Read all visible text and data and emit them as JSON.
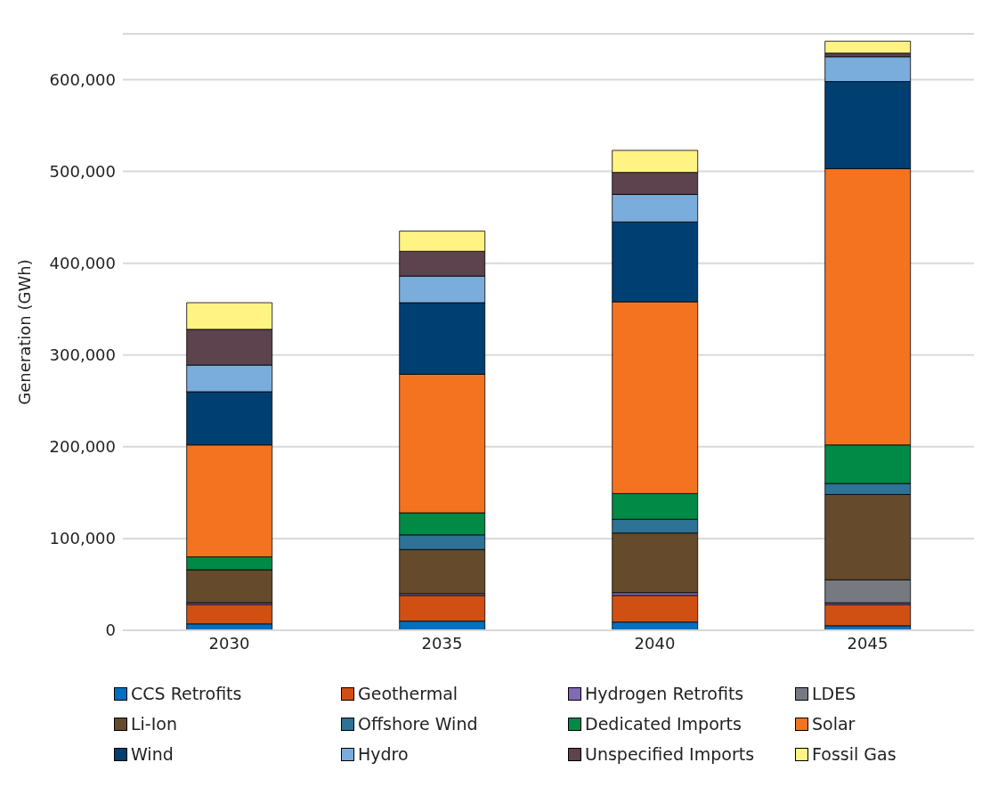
{
  "chart_data": {
    "type": "bar",
    "stacked": true,
    "ylabel": "Generation (GWh)",
    "categories": [
      "2030",
      "2035",
      "2040",
      "2045"
    ],
    "ylim": [
      0,
      650000
    ],
    "yticks": [
      {
        "value": 0,
        "label": "0"
      },
      {
        "value": 100000,
        "label": "100,000"
      },
      {
        "value": 200000,
        "label": "200,000"
      },
      {
        "value": 300000,
        "label": "300,000"
      },
      {
        "value": 400000,
        "label": "400,000"
      },
      {
        "value": 500000,
        "label": "500,000"
      },
      {
        "value": 600000,
        "label": "600,000"
      }
    ],
    "grid": "y",
    "legend": "bottom",
    "series": [
      {
        "name": "CCS Retrofits",
        "color": "#0070c0",
        "values": [
          7000,
          10000,
          9000,
          5000
        ]
      },
      {
        "name": "Geothermal",
        "color": "#d05014",
        "values": [
          21000,
          28000,
          29000,
          23000
        ]
      },
      {
        "name": "Hydrogen Retrofits",
        "color": "#7f6bb5",
        "values": [
          2000,
          2000,
          3000,
          2000
        ]
      },
      {
        "name": "LDES",
        "color": "#767a80",
        "values": [
          0,
          0,
          0,
          25000
        ]
      },
      {
        "name": "Li-Ion",
        "color": "#654a2c",
        "values": [
          36000,
          48000,
          65000,
          93000
        ]
      },
      {
        "name": "Offshore Wind",
        "color": "#2e7296",
        "values": [
          0,
          16000,
          15000,
          12000
        ]
      },
      {
        "name": "Dedicated Imports",
        "color": "#008a45",
        "values": [
          14000,
          24000,
          28000,
          42000
        ]
      },
      {
        "name": "Solar",
        "color": "#f47321",
        "values": [
          122000,
          151000,
          209000,
          301000
        ]
      },
      {
        "name": "Wind",
        "color": "#003f72",
        "values": [
          58000,
          78000,
          87000,
          95000
        ]
      },
      {
        "name": "Hydro",
        "color": "#7aaddc",
        "values": [
          29000,
          29000,
          30000,
          27000
        ]
      },
      {
        "name": "Unspecified Imports",
        "color": "#5c434d",
        "values": [
          39000,
          27000,
          24000,
          4000
        ]
      },
      {
        "name": "Fossil Gas",
        "color": "#fff383",
        "values": [
          29000,
          22000,
          24000,
          13000
        ]
      }
    ]
  }
}
